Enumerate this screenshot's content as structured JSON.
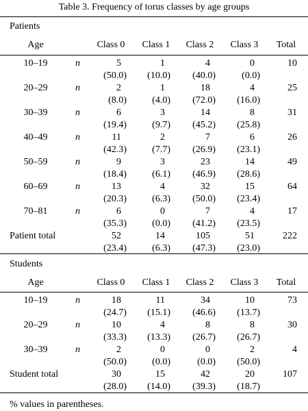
{
  "caption": "Table  3.    Frequency of torus classes by age groups",
  "columns": [
    "Age",
    "",
    "Class 0",
    "Class 1",
    "Class 2",
    "Class 3",
    "Total"
  ],
  "sections": [
    {
      "label": "Patients",
      "rows": [
        {
          "age": "10–19",
          "n": "n",
          "counts": [
            "5",
            "1",
            "4",
            "0"
          ],
          "pcts": [
            "(50.0)",
            "(10.0)",
            "(40.0)",
            "(0.0)"
          ],
          "total": "10"
        },
        {
          "age": "20–29",
          "n": "n",
          "counts": [
            "2",
            "1",
            "18",
            "4"
          ],
          "pcts": [
            "(8.0)",
            "(4.0)",
            "(72.0)",
            "(16.0)"
          ],
          "total": "25"
        },
        {
          "age": "30–39",
          "n": "n",
          "counts": [
            "6",
            "3",
            "14",
            "8"
          ],
          "pcts": [
            "(19.4)",
            "(9.7)",
            "(45.2)",
            "(25.8)"
          ],
          "total": "31"
        },
        {
          "age": "40–49",
          "n": "n",
          "counts": [
            "11",
            "2",
            "7",
            "6"
          ],
          "pcts": [
            "(42.3)",
            "(7.7)",
            "(26.9)",
            "(23.1)"
          ],
          "total": "26"
        },
        {
          "age": "50–59",
          "n": "n",
          "counts": [
            "9",
            "3",
            "23",
            "14"
          ],
          "pcts": [
            "(18.4)",
            "(6.1)",
            "(46.9)",
            "(28.6)"
          ],
          "total": "49"
        },
        {
          "age": "60–69",
          "n": "n",
          "counts": [
            "13",
            "4",
            "32",
            "15"
          ],
          "pcts": [
            "(20.3)",
            "(6.3)",
            "(50.0)",
            "(23.4)"
          ],
          "total": "64"
        },
        {
          "age": "70–81",
          "n": "n",
          "counts": [
            "6",
            "0",
            "7",
            "4"
          ],
          "pcts": [
            "(35.3)",
            "(0.0)",
            "(41.2)",
            "(23.5)"
          ],
          "total": "17"
        },
        {
          "age": "Patient total",
          "n": "",
          "counts": [
            "52",
            "14",
            "105",
            "51"
          ],
          "pcts": [
            "(23.4)",
            "(6.3)",
            "(47.3)",
            "(23.0)"
          ],
          "total": "222"
        }
      ]
    },
    {
      "label": "Students",
      "rows": [
        {
          "age": "10–19",
          "n": "n",
          "counts": [
            "18",
            "11",
            "34",
            "10"
          ],
          "pcts": [
            "(24.7)",
            "(15.1)",
            "(46.6)",
            "(13.7)"
          ],
          "total": "73"
        },
        {
          "age": "20–29",
          "n": "n",
          "counts": [
            "10",
            "4",
            "8",
            "8"
          ],
          "pcts": [
            "(33.3)",
            "(13.3)",
            "(26.7)",
            "(26.7)"
          ],
          "total": "30"
        },
        {
          "age": "30–39",
          "n": "n",
          "counts": [
            "2",
            "0",
            "0",
            "2"
          ],
          "pcts": [
            "(50.0)",
            "(0.0)",
            "(0.0)",
            "(50.0)"
          ],
          "total": "4"
        },
        {
          "age": "Student total",
          "n": "",
          "counts": [
            "30",
            "15",
            "42",
            "20"
          ],
          "pcts": [
            "(28.0)",
            "(14.0)",
            "(39.3)",
            "(18.7)"
          ],
          "total": "107"
        }
      ]
    }
  ],
  "footnote": "% values in parentheses."
}
